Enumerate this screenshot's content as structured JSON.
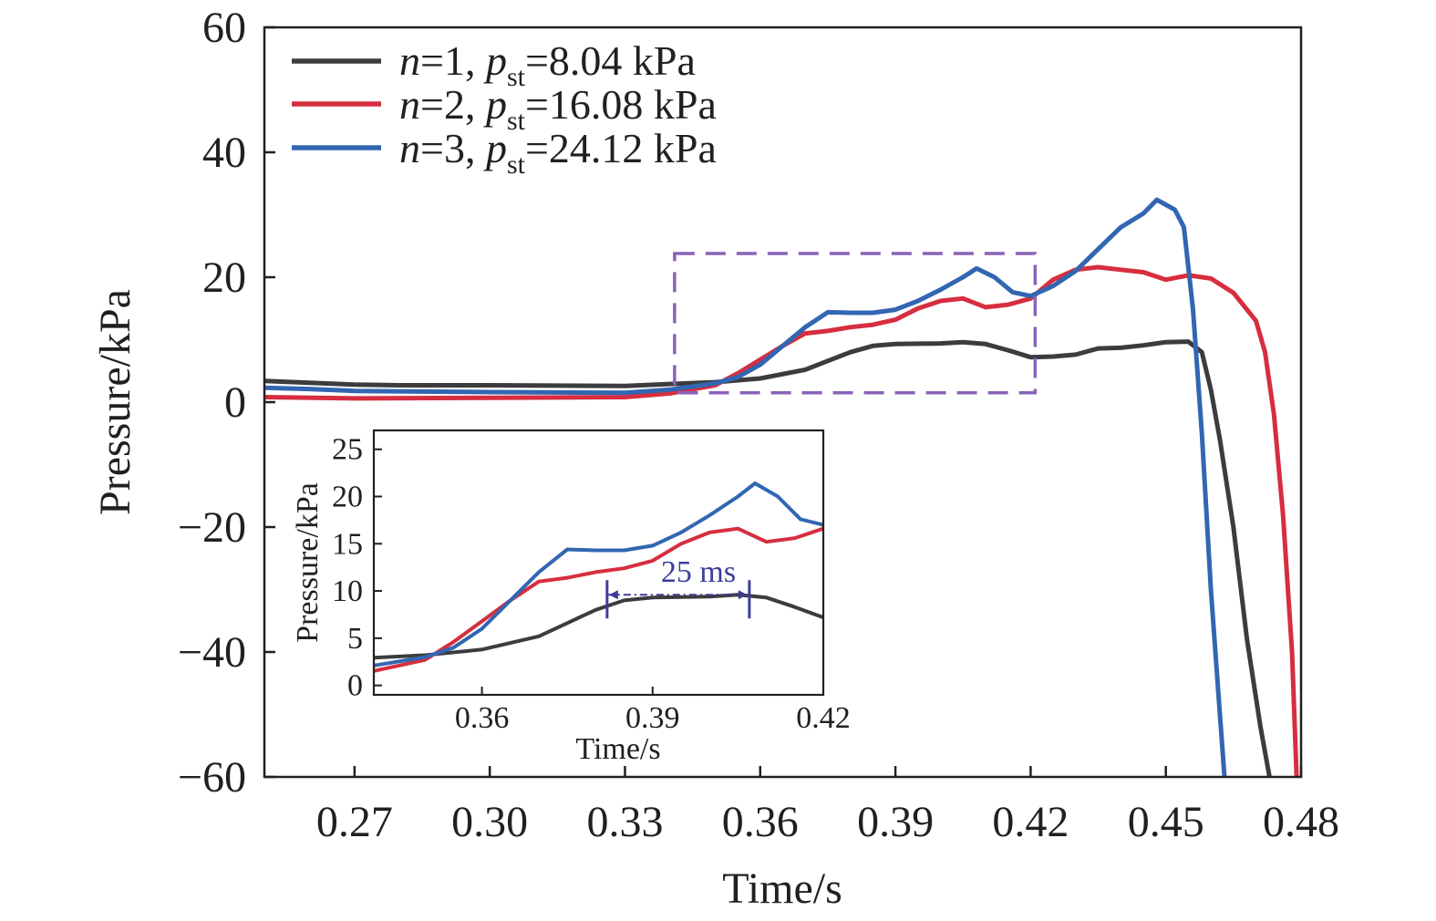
{
  "chart_data": [
    {
      "type": "line",
      "xlabel": "Time/s",
      "ylabel": "Pressure/kPa",
      "xlim": [
        0.25,
        0.48
      ],
      "ylim": [
        -60,
        60
      ],
      "xticks": [
        "0.27",
        "0.30",
        "0.33",
        "0.36",
        "0.39",
        "0.42",
        "0.45",
        "0.48"
      ],
      "yticks": [
        "60",
        "40",
        "20",
        "0",
        "−20",
        "−40",
        "−60"
      ],
      "legend_position": "top-left",
      "series": [
        {
          "name": "n=1, pst=8.04 kPa",
          "label": {
            "n": "n",
            "n_val": "=1, ",
            "p": "p",
            "sub": "st",
            "p_val": "=8.04 kPa"
          },
          "color": "#3c3c3e",
          "points": [
            [
              0.25,
              3.4
            ],
            [
              0.26,
              3.1
            ],
            [
              0.27,
              2.8
            ],
            [
              0.28,
              2.7
            ],
            [
              0.3,
              2.7
            ],
            [
              0.33,
              2.6
            ],
            [
              0.34,
              2.9
            ],
            [
              0.35,
              3.2
            ],
            [
              0.36,
              3.8
            ],
            [
              0.37,
              5.2
            ],
            [
              0.375,
              6.6
            ],
            [
              0.38,
              8.0
            ],
            [
              0.385,
              9.0
            ],
            [
              0.39,
              9.3
            ],
            [
              0.4,
              9.4
            ],
            [
              0.405,
              9.6
            ],
            [
              0.41,
              9.3
            ],
            [
              0.415,
              8.3
            ],
            [
              0.42,
              7.2
            ],
            [
              0.425,
              7.3
            ],
            [
              0.43,
              7.6
            ],
            [
              0.435,
              8.6
            ],
            [
              0.44,
              8.7
            ],
            [
              0.445,
              9.1
            ],
            [
              0.45,
              9.6
            ],
            [
              0.455,
              9.7
            ],
            [
              0.458,
              8.0
            ],
            [
              0.46,
              2.0
            ],
            [
              0.462,
              -6.0
            ],
            [
              0.465,
              -20.0
            ],
            [
              0.468,
              -38.0
            ],
            [
              0.471,
              -52.0
            ],
            [
              0.473,
              -60.0
            ]
          ]
        },
        {
          "name": "n=2, pst=16.08 kPa",
          "label": {
            "n": "n",
            "n_val": "=2, ",
            "p": "p",
            "sub": "st",
            "p_val": "=16.08 kPa"
          },
          "color": "#d62e3f",
          "points": [
            [
              0.25,
              0.8
            ],
            [
              0.27,
              0.6
            ],
            [
              0.3,
              0.7
            ],
            [
              0.33,
              0.8
            ],
            [
              0.34,
              1.4
            ],
            [
              0.35,
              2.7
            ],
            [
              0.355,
              4.6
            ],
            [
              0.36,
              6.8
            ],
            [
              0.365,
              9.0
            ],
            [
              0.37,
              11.0
            ],
            [
              0.375,
              11.4
            ],
            [
              0.38,
              12.0
            ],
            [
              0.385,
              12.4
            ],
            [
              0.39,
              13.2
            ],
            [
              0.395,
              15.0
            ],
            [
              0.4,
              16.2
            ],
            [
              0.405,
              16.6
            ],
            [
              0.41,
              15.2
            ],
            [
              0.415,
              15.6
            ],
            [
              0.42,
              16.6
            ],
            [
              0.425,
              19.6
            ],
            [
              0.43,
              21.2
            ],
            [
              0.435,
              21.6
            ],
            [
              0.44,
              21.2
            ],
            [
              0.445,
              20.8
            ],
            [
              0.45,
              19.6
            ],
            [
              0.455,
              20.3
            ],
            [
              0.46,
              19.8
            ],
            [
              0.465,
              17.5
            ],
            [
              0.47,
              13.0
            ],
            [
              0.472,
              8.0
            ],
            [
              0.474,
              -2.0
            ],
            [
              0.476,
              -18.0
            ],
            [
              0.478,
              -40.0
            ],
            [
              0.479,
              -60.0
            ]
          ]
        },
        {
          "name": "n=3, pst=24.12 kPa",
          "label": {
            "n": "n",
            "n_val": "=3, ",
            "p": "p",
            "sub": "st",
            "p_val": "=24.12 kPa"
          },
          "color": "#3266b2",
          "points": [
            [
              0.25,
              2.3
            ],
            [
              0.26,
              2.1
            ],
            [
              0.27,
              1.8
            ],
            [
              0.3,
              1.6
            ],
            [
              0.33,
              1.5
            ],
            [
              0.34,
              2.0
            ],
            [
              0.35,
              3.0
            ],
            [
              0.355,
              4.0
            ],
            [
              0.36,
              6.0
            ],
            [
              0.365,
              9.0
            ],
            [
              0.37,
              12.0
            ],
            [
              0.375,
              14.4
            ],
            [
              0.38,
              14.3
            ],
            [
              0.385,
              14.3
            ],
            [
              0.39,
              14.8
            ],
            [
              0.395,
              16.2
            ],
            [
              0.4,
              18.0
            ],
            [
              0.405,
              20.0
            ],
            [
              0.408,
              21.4
            ],
            [
              0.412,
              20.0
            ],
            [
              0.416,
              17.6
            ],
            [
              0.42,
              17.0
            ],
            [
              0.425,
              18.6
            ],
            [
              0.43,
              21.0
            ],
            [
              0.435,
              24.5
            ],
            [
              0.44,
              28.0
            ],
            [
              0.445,
              30.2
            ],
            [
              0.448,
              32.4
            ],
            [
              0.452,
              30.8
            ],
            [
              0.454,
              28.0
            ],
            [
              0.456,
              15.0
            ],
            [
              0.458,
              -5.0
            ],
            [
              0.46,
              -30.0
            ],
            [
              0.462,
              -50.0
            ],
            [
              0.463,
              -60.0
            ]
          ]
        }
      ],
      "highlight_box": {
        "x": [
          0.341,
          0.421
        ],
        "y": [
          1.5,
          23.8
        ],
        "color": "#8a63b8"
      }
    },
    {
      "type": "line",
      "inset": true,
      "xlabel": "Time/s",
      "ylabel": "Pressure/kPa",
      "xlim": [
        0.341,
        0.42
      ],
      "ylim": [
        -1,
        27
      ],
      "xticks": [
        "0.36",
        "0.39",
        "0.42"
      ],
      "yticks": [
        "25",
        "20",
        "15",
        "10",
        "5",
        "0"
      ],
      "annotation": {
        "text": "25 ms",
        "x": [
          0.382,
          0.407
        ],
        "y": 9.6,
        "color": "#3d3d99"
      }
    }
  ]
}
